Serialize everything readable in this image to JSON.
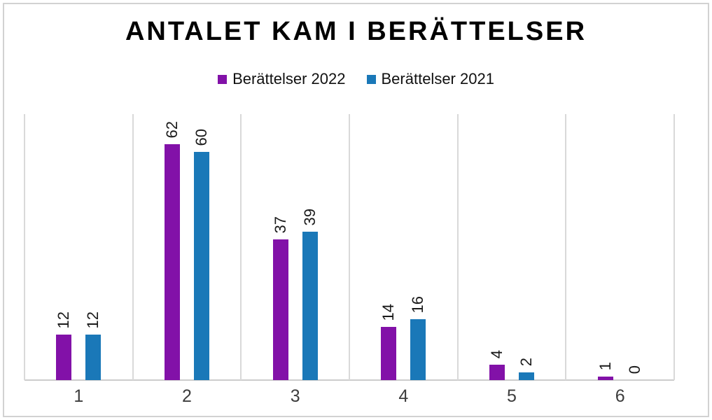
{
  "title": "ANTALET KAM I BERÄTTELSER",
  "chart_data": {
    "type": "bar",
    "title": "ANTALET KAM I BERÄTTELSER",
    "categories": [
      "1",
      "2",
      "3",
      "4",
      "5",
      "6"
    ],
    "series": [
      {
        "name": "Berättelser 2022",
        "color": "#8211a8",
        "values": [
          12,
          62,
          37,
          14,
          4,
          1
        ]
      },
      {
        "name": "Berättelser 2021",
        "color": "#1a78b8",
        "values": [
          12,
          60,
          39,
          16,
          2,
          0
        ]
      }
    ],
    "xlabel": "",
    "ylabel": "",
    "ylim": [
      0,
      70
    ],
    "grid": "vertical category boundaries only",
    "legend_position": "top-center",
    "data_labels": "value above each bar, rotated 90° counterclockwise",
    "y_axis_labels_visible": false
  }
}
